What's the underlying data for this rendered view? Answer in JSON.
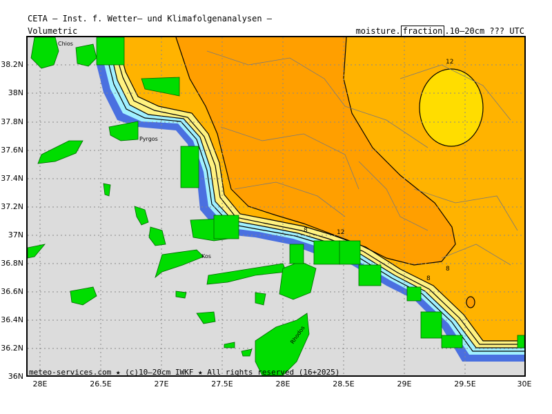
{
  "header": {
    "org": "CETA — Inst. f. Wetter— und Klimafolgenanalysen —",
    "field_type": "Volumetric",
    "variable_pre": "moisture.",
    "variable_boxed": "fraction",
    "variable_post": ".10—20cm ??? UTC"
  },
  "footer": "meteo-services.com ★ (c)10—20cm IWKF ★ All rights reserved (16+2025)",
  "axes": {
    "lon_ticks": [
      "28E",
      "26.5E",
      "27E",
      "27.5E",
      "28E",
      "28.5E",
      "29E",
      "29.5E",
      "30E"
    ],
    "lat_ticks": [
      "38.2N",
      "38N",
      "37.8N",
      "37.6N",
      "37.4N",
      "37.2N",
      "37N",
      "36.8N",
      "36.6N",
      "36.4N",
      "36.2N",
      "36N"
    ]
  },
  "places": {
    "chios": "Chios",
    "pyrgos": "Pyrgos",
    "kos": "Kos",
    "rhodos": "Rhodos"
  },
  "contour_labels": [
    "12",
    "8",
    "12",
    "8",
    "8"
  ],
  "colors": {
    "sea": "#dcdcdc",
    "land_mask": "#00dd00",
    "dark_orange": "#ff9f00",
    "orange": "#ffb300",
    "yellow": "#ffdd00",
    "light_yellow": "#fff280",
    "cyan": "#a0f0ff",
    "blue": "#4a70e0"
  }
}
